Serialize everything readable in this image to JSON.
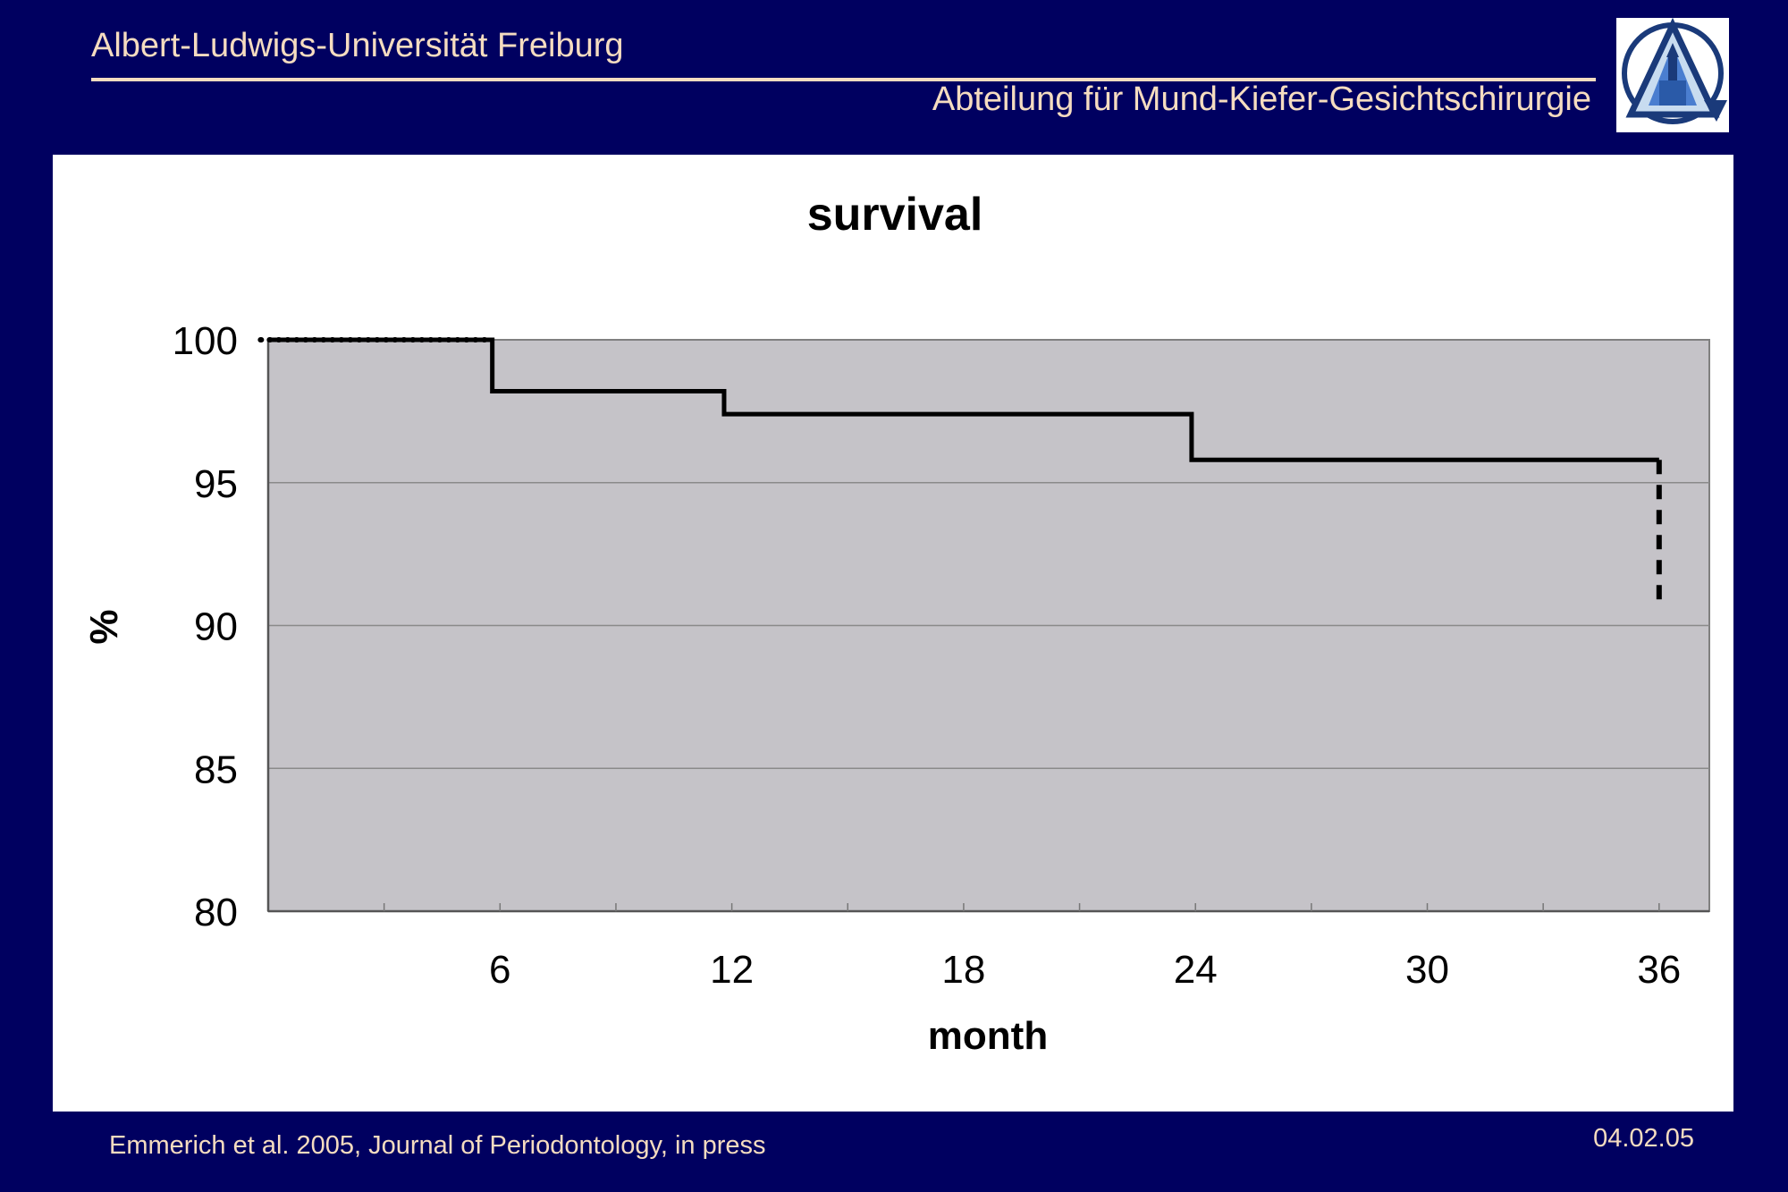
{
  "header": {
    "university": "Albert-Ludwigs-Universität Freiburg",
    "department": "Abteilung für Mund-Kiefer-Gesichtschirurgie"
  },
  "footer": {
    "citation": "Emmerich et al. 2005, Journal of Periodontology, in press",
    "date": "04.02.05"
  },
  "logo": {
    "icon": "university-cathedral-triangle-logo",
    "colors": [
      "#1a3a7a",
      "#4a7ed0"
    ]
  },
  "chart_data": {
    "type": "line",
    "subtype": "step (Kaplan-Meier survival curve)",
    "title": "survival",
    "xlabel": "month",
    "ylabel": "%",
    "xlim": [
      0,
      36
    ],
    "ylim": [
      80,
      100
    ],
    "x_ticks": [
      6,
      12,
      18,
      24,
      30,
      36
    ],
    "y_ticks": [
      80,
      85,
      90,
      95,
      100
    ],
    "grid": true,
    "plot_background": "#c5c3c8",
    "line_color": "#000000",
    "series": [
      {
        "x": [
          0,
          5.8,
          5.8,
          11.8,
          11.8,
          23.9,
          23.9,
          36
        ],
        "y": [
          100,
          100,
          98.2,
          98.2,
          97.4,
          97.4,
          95.8,
          95.8
        ]
      }
    ],
    "leading_dotted_segment": {
      "x": [
        -0.2,
        5.8
      ],
      "y": [
        100,
        100
      ]
    },
    "trailing_dashed_drop": {
      "x": [
        36,
        36
      ],
      "y": [
        95.8,
        90.9
      ]
    }
  }
}
